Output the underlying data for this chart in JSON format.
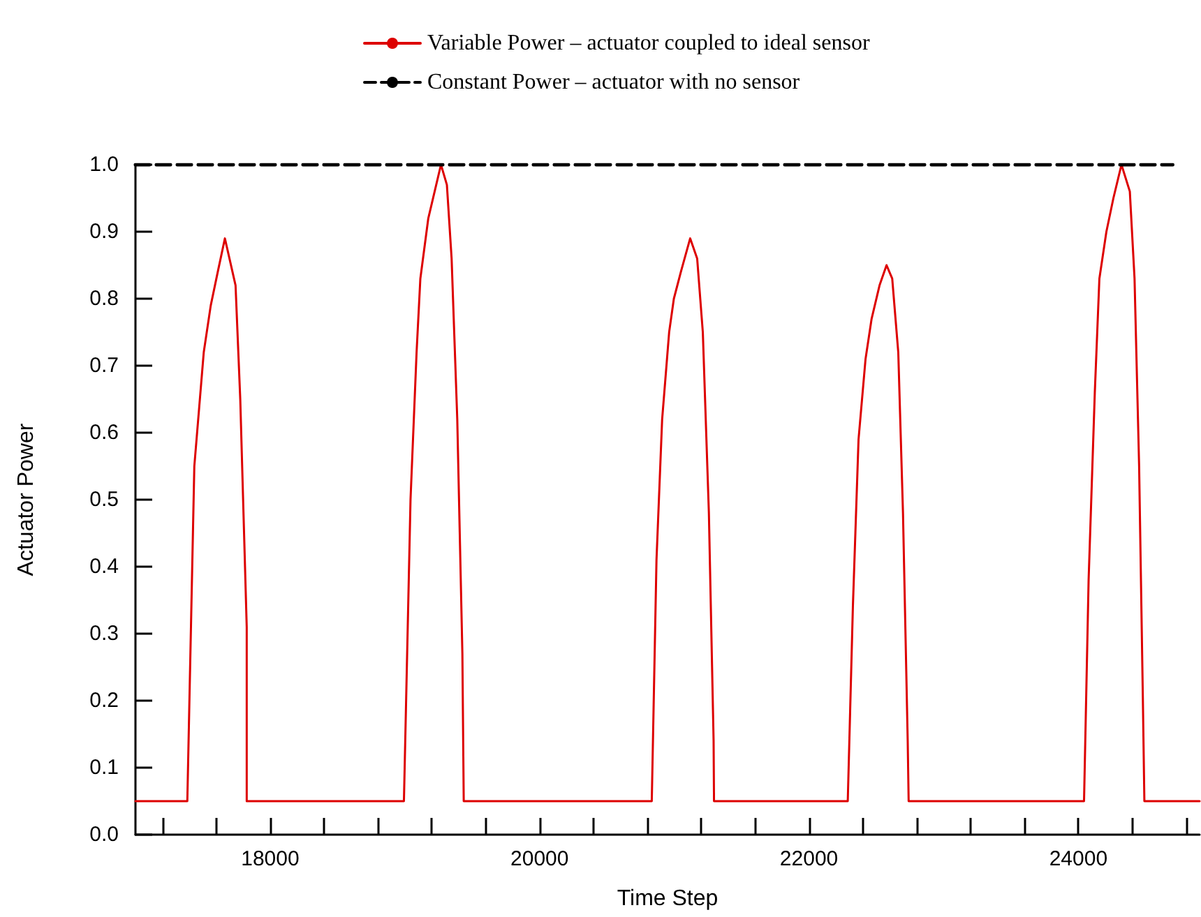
{
  "chart_data": {
    "type": "line",
    "xlabel": "Time Step",
    "ylabel": "Actuator Power",
    "xlim": [
      17000,
      24900
    ],
    "ylim": [
      0,
      1
    ],
    "xticks": [
      {
        "value": 17200,
        "label": null
      },
      {
        "value": 17600,
        "label": null
      },
      18000,
      {
        "value": 18400,
        "label": null
      },
      {
        "value": 18800,
        "label": null
      },
      {
        "value": 19200,
        "label": null
      },
      {
        "value": 19600,
        "label": null
      },
      20000,
      {
        "value": 20400,
        "label": null
      },
      {
        "value": 20800,
        "label": null
      },
      {
        "value": 21200,
        "label": null
      },
      {
        "value": 21600,
        "label": null
      },
      22000,
      {
        "value": 22400,
        "label": null
      },
      {
        "value": 22800,
        "label": null
      },
      {
        "value": 23200,
        "label": null
      },
      {
        "value": 23600,
        "label": null
      },
      24000,
      {
        "value": 24400,
        "label": null
      },
      {
        "value": 24800,
        "label": null
      }
    ],
    "yticks": [
      {
        "value": 0,
        "label": "0.0"
      },
      {
        "value": 0.1,
        "label": "0.1"
      },
      {
        "value": 0.2,
        "label": "0.2"
      },
      {
        "value": 0.3,
        "label": "0.3"
      },
      {
        "value": 0.4,
        "label": "0.4"
      },
      {
        "value": 0.5,
        "label": "0.5"
      },
      {
        "value": 0.6,
        "label": "0.6"
      },
      {
        "value": 0.7,
        "label": "0.7"
      },
      {
        "value": 0.8,
        "label": "0.8"
      },
      {
        "value": 0.9,
        "label": "0.9"
      },
      {
        "value": 1,
        "label": "1.0"
      }
    ],
    "grid": false,
    "legend": "top",
    "marker": "none",
    "series": [
      {
        "name": "Variable Power – actuator coupled to ideal sensor",
        "color": "#dd0000",
        "line_style": "solid",
        "x": [
          17000,
          17385,
          17437,
          17507,
          17559,
          17611,
          17664,
          17743,
          17778,
          17826,
          17826,
          18993,
          19042,
          19087,
          19115,
          19174,
          19268,
          19312,
          19347,
          19389,
          19427,
          19437,
          20833,
          20868,
          20910,
          20962,
          20997,
          21049,
          21118,
          21170,
          21212,
          21257,
          21292,
          21295,
          22288,
          22326,
          22368,
          22420,
          22465,
          22524,
          22576,
          22618,
          22663,
          22698,
          22733,
          22740,
          24042,
          24076,
          24122,
          24156,
          24208,
          24260,
          24320,
          24382,
          24417,
          24451,
          24479,
          24490,
          24900
        ],
        "values": [
          0.05,
          0.05,
          0.55,
          0.72,
          0.79,
          0.84,
          0.89,
          0.82,
          0.65,
          0.31,
          0.05,
          0.05,
          0.5,
          0.72,
          0.83,
          0.92,
          1.0,
          0.97,
          0.86,
          0.62,
          0.27,
          0.05,
          0.05,
          0.41,
          0.62,
          0.75,
          0.8,
          0.84,
          0.89,
          0.86,
          0.75,
          0.48,
          0.14,
          0.05,
          0.05,
          0.34,
          0.59,
          0.71,
          0.77,
          0.82,
          0.85,
          0.83,
          0.72,
          0.48,
          0.14,
          0.05,
          0.05,
          0.38,
          0.66,
          0.83,
          0.9,
          0.95,
          1.0,
          0.96,
          0.83,
          0.55,
          0.2,
          0.05,
          0.05
        ]
      },
      {
        "name": "Constant Power – actuator with no sensor",
        "color": "#000000",
        "line_style": "dashed",
        "x": [
          17000,
          24700
        ],
        "values": [
          1.0,
          1.0
        ]
      }
    ]
  }
}
